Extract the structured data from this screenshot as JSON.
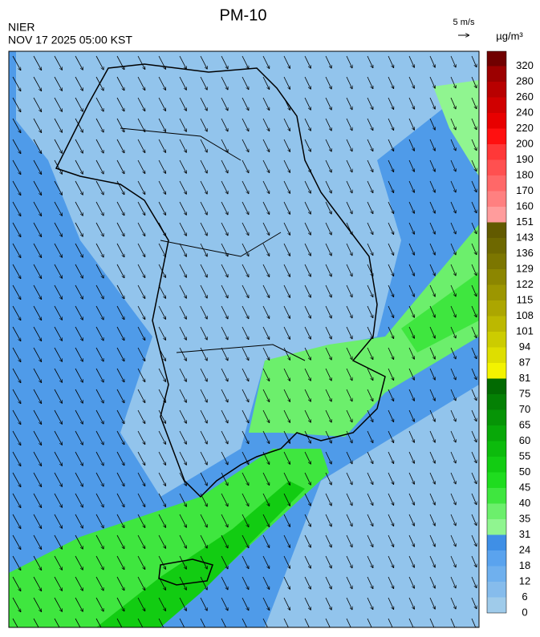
{
  "title": "PM-10",
  "agency": "NIER",
  "timestamp": "NOV 17 2025 05:00 KST",
  "wind_scale": "5 m/s",
  "unit": "µg/m³",
  "colorbar": {
    "labels": [
      0,
      6,
      12,
      18,
      24,
      31,
      35,
      40,
      45,
      50,
      55,
      60,
      65,
      70,
      75,
      81,
      87,
      94,
      101,
      108,
      115,
      122,
      129,
      136,
      143,
      151,
      160,
      170,
      180,
      190,
      200,
      220,
      240,
      260,
      280,
      320
    ],
    "colors": [
      "#9fcbea",
      "#86bcec",
      "#6fb0ee",
      "#5aa3ee",
      "#3f8fe6",
      "#90f590",
      "#6cef6c",
      "#3fe63f",
      "#1fdc1f",
      "#12cc12",
      "#0cbb0c",
      "#08a808",
      "#069406",
      "#048004",
      "#026a02",
      "#f3f300",
      "#dede00",
      "#cccc00",
      "#bcb800",
      "#aca600",
      "#9c9600",
      "#8c8600",
      "#7c7600",
      "#6e6800",
      "#625a00",
      "#ff9c9c",
      "#ff8080",
      "#ff6868",
      "#ff5050",
      "#ff3838",
      "#ff1010",
      "#e80000",
      "#d00000",
      "#b80000",
      "#9c0000",
      "#700000"
    ]
  }
}
